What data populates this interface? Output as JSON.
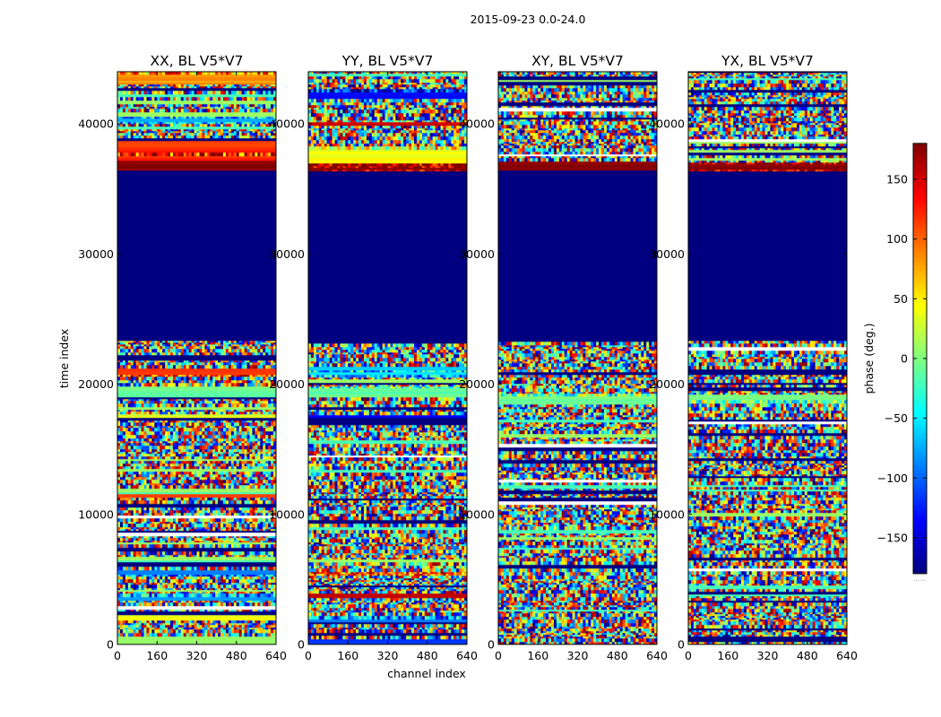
{
  "chart_data": {
    "type": "heatmap",
    "suptitle": "2015-09-23 0.0-24.0",
    "xlabel": "channel index",
    "ylabel": "time index",
    "x_ticks": [
      0,
      160,
      320,
      480,
      640
    ],
    "y_ticks": [
      0,
      10000,
      20000,
      30000,
      40000
    ],
    "x_tick_labels": [
      "0",
      "160",
      "320",
      "480",
      "640"
    ],
    "y_tick_labels": [
      "0",
      "10000",
      "20000",
      "30000",
      "40000"
    ],
    "xlim": [
      0,
      640
    ],
    "ylim": [
      0,
      44000
    ],
    "colorbar": {
      "label": "phase (deg.)",
      "range": [
        -180,
        180
      ],
      "ticks": [
        -150,
        -100,
        -50,
        0,
        50,
        100,
        150
      ],
      "tick_labels": [
        "−150",
        "−100",
        "−50",
        "0",
        "50",
        "100",
        "150"
      ],
      "colormap": "jet"
    },
    "flagged_time_ranges": [
      [
        23400,
        36400
      ]
    ],
    "panels": [
      {
        "title": "XX, BL V5*V7",
        "polarization": "XX",
        "coherent_bands": [
          {
            "t0": 0,
            "t1": 600,
            "phase": 5
          },
          {
            "t0": 1800,
            "t1": 2300,
            "phase": 40
          },
          {
            "t0": 3500,
            "t1": 3800,
            "phase": -80
          },
          {
            "t0": 5200,
            "t1": 5800,
            "phase": -90
          },
          {
            "t0": 11300,
            "t1": 11600,
            "phase": 120
          },
          {
            "t0": 17400,
            "t1": 17700,
            "phase": 30
          },
          {
            "t0": 19000,
            "t1": 19800,
            "phase": -10
          },
          {
            "t0": 20500,
            "t1": 21200,
            "phase": 110
          },
          {
            "t0": 36400,
            "t1": 37100,
            "phase": 178
          },
          {
            "t0": 37100,
            "t1": 38800,
            "phase": 120
          },
          {
            "t0": 40000,
            "t1": 40600,
            "phase": -70
          },
          {
            "t0": 43000,
            "t1": 44000,
            "phase": 80
          }
        ]
      },
      {
        "title": "YY, BL V5*V7",
        "polarization": "YY",
        "coherent_bands": [
          {
            "t0": 0,
            "t1": 400,
            "phase": -110
          },
          {
            "t0": 1800,
            "t1": 2100,
            "phase": -90
          },
          {
            "t0": 3600,
            "t1": 3900,
            "phase": 150
          },
          {
            "t0": 5200,
            "t1": 5700,
            "phase": 110
          },
          {
            "t0": 17300,
            "t1": 17600,
            "phase": -140
          },
          {
            "t0": 19000,
            "t1": 19800,
            "phase": -10
          },
          {
            "t0": 20500,
            "t1": 21300,
            "phase": -60
          },
          {
            "t0": 36400,
            "t1": 37100,
            "phase": 178
          },
          {
            "t0": 37100,
            "t1": 38300,
            "phase": 40
          },
          {
            "t0": 39800,
            "t1": 40200,
            "phase": 150
          },
          {
            "t0": 42000,
            "t1": 42600,
            "phase": -140
          }
        ]
      },
      {
        "title": "XY, BL V5*V7",
        "polarization": "XY",
        "coherent_bands": [
          {
            "t0": 18400,
            "t1": 19200,
            "phase": -5
          },
          {
            "t0": 36400,
            "t1": 37100,
            "phase": 178
          }
        ]
      },
      {
        "title": "YX, BL V5*V7",
        "polarization": "YX",
        "coherent_bands": [
          {
            "t0": 18400,
            "t1": 19200,
            "phase": -5
          },
          {
            "t0": 36400,
            "t1": 37100,
            "phase": 178
          }
        ]
      }
    ]
  }
}
